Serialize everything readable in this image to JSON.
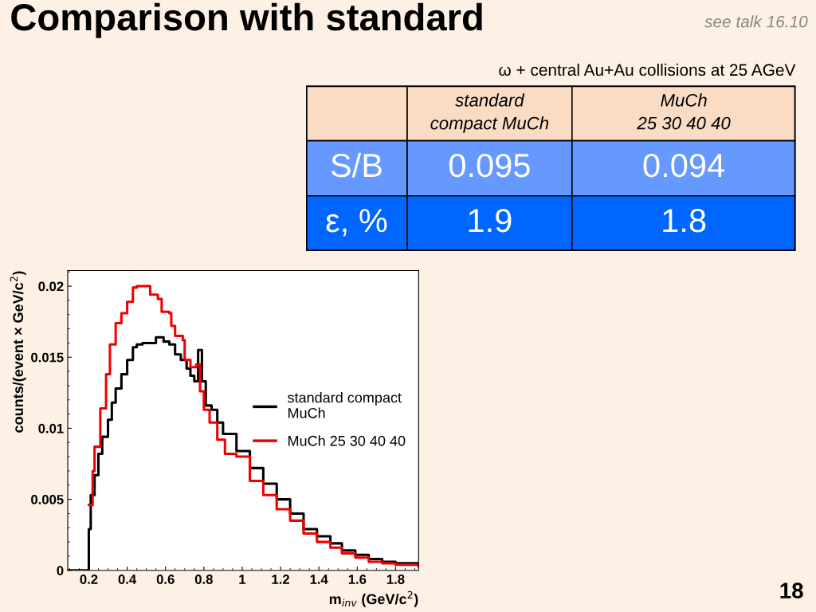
{
  "chart_data": [
    {
      "type": "step",
      "title": "Comparison with standard",
      "annotations": [
        "see talk 16.10",
        "18"
      ],
      "xlabel": "m$_{inv}$ (GeV/c$^{2}$)",
      "ylabel": "counts/(event × GeV/c$^{2}$)",
      "xlim": [
        0.09,
        1.92
      ],
      "ylim": [
        0,
        0.0211
      ],
      "xticks": [
        0.2,
        0.4,
        0.6,
        0.8,
        1,
        1.2,
        1.4,
        1.6,
        1.8
      ],
      "yticks": [
        0,
        0.005,
        0.01,
        0.015,
        0.02
      ],
      "grid": false,
      "legend": "right",
      "line_style": "solid",
      "marker": "none",
      "series": [
        {
          "name": "standard compact\nMuCh",
          "color": "#000000",
          "x": [
            0.09,
            0.2,
            0.21,
            0.23,
            0.25,
            0.27,
            0.3,
            0.32,
            0.34,
            0.37,
            0.4,
            0.43,
            0.45,
            0.48,
            0.51,
            0.55,
            0.59,
            0.62,
            0.65,
            0.68,
            0.71,
            0.73,
            0.75,
            0.77,
            0.79,
            0.81,
            0.84,
            0.87,
            0.9,
            0.97,
            1.04,
            1.11,
            1.18,
            1.25,
            1.32,
            1.39,
            1.46,
            1.52,
            1.59,
            1.66,
            1.73,
            1.8,
            1.92
          ],
          "values": [
            0,
            0.0029,
            0.0053,
            0.0067,
            0.0082,
            0.0094,
            0.0106,
            0.0118,
            0.0128,
            0.0138,
            0.0148,
            0.0157,
            0.0159,
            0.016,
            0.016,
            0.0164,
            0.0161,
            0.0159,
            0.0152,
            0.0148,
            0.0142,
            0.0137,
            0.0133,
            0.0155,
            0.0133,
            0.0116,
            0.0113,
            0.0104,
            0.0096,
            0.0084,
            0.0072,
            0.0061,
            0.005,
            0.004,
            0.0029,
            0.0024,
            0.0019,
            0.0014,
            0.0011,
            0.0008,
            0.0006,
            0.0005,
            0.0003
          ]
        },
        {
          "name": "MuCh 25 30 40 40",
          "color": "#ee0000",
          "x": [
            0.2,
            0.22,
            0.23,
            0.26,
            0.29,
            0.31,
            0.34,
            0.37,
            0.4,
            0.43,
            0.45,
            0.49,
            0.52,
            0.56,
            0.58,
            0.62,
            0.63,
            0.65,
            0.69,
            0.7,
            0.73,
            0.76,
            0.78,
            0.8,
            0.83,
            0.87,
            0.91,
            0.97,
            1.04,
            1.11,
            1.18,
            1.25,
            1.32,
            1.39,
            1.46,
            1.52,
            1.59,
            1.66,
            1.73,
            1.8,
            1.92
          ],
          "values": [
            0.0046,
            0.007,
            0.0087,
            0.0114,
            0.0138,
            0.0159,
            0.0174,
            0.0181,
            0.0189,
            0.0199,
            0.02,
            0.02,
            0.0194,
            0.0191,
            0.0182,
            0.0181,
            0.0172,
            0.0165,
            0.0162,
            0.0148,
            0.0143,
            0.0145,
            0.0126,
            0.0113,
            0.0104,
            0.0092,
            0.0082,
            0.008,
            0.0063,
            0.0053,
            0.0043,
            0.0035,
            0.0026,
            0.002,
            0.0016,
            0.0012,
            0.0009,
            0.0006,
            0.0005,
            0.0004,
            0.0003
          ]
        }
      ]
    },
    {
      "type": "other",
      "title": "ω + central Au+Au collisions at 25 AGeV",
      "categories": [
        null,
        "standard\ncompact MuCh",
        "MuCh\n25 30 40 40"
      ],
      "y_categories": [
        "S/B",
        "ε, %"
      ],
      "cell_labels": [
        [
          "0.095",
          "0.094"
        ],
        [
          "1.9",
          "1.8"
        ]
      ]
    }
  ]
}
